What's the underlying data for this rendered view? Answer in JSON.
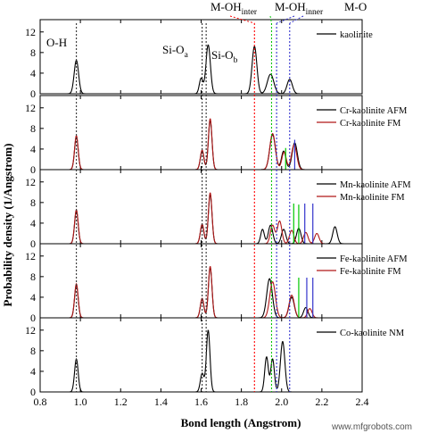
{
  "chart_data": {
    "type": "line",
    "xlabel": "Bond length (Angstrom)",
    "ylabel": "Probability density (1/Angstrom)",
    "xlim": [
      0.8,
      2.4
    ],
    "ylim": [
      0,
      13
    ],
    "x_ticks": [
      "0.8",
      "1.0",
      "1.2",
      "1.4",
      "1.6",
      "1.8",
      "2.0",
      "2.2",
      "2.4"
    ],
    "y_ticks": [
      "0",
      "4",
      "8",
      "12"
    ],
    "annotations": {
      "oh": "O-H",
      "sioa_main": "Si-O",
      "sioa_sub": "a",
      "siob_main": "Si-O",
      "siob_sub": "b",
      "mohinter_main": "M-OH",
      "mohinter_sub": "inter",
      "mohinner_main": "M-OH",
      "mohinner_sub": "inner",
      "mo": "M-O"
    },
    "reference_lines": [
      {
        "x": 0.98,
        "color": "#333333"
      },
      {
        "x": 1.605,
        "color": "#333333"
      },
      {
        "x": 1.625,
        "color": "#333333"
      },
      {
        "x": 1.865,
        "color": "#ff0000"
      },
      {
        "x": 1.95,
        "color": "#00c800"
      },
      {
        "x": 1.975,
        "color": "#3333cc"
      },
      {
        "x": 2.04,
        "color": "#3333cc"
      }
    ],
    "panels": [
      {
        "series": [
          {
            "name": "kaolinite",
            "color": "#000000",
            "peaks": [
              [
                0.98,
                6.5,
                0.011
              ],
              [
                1.6,
                3.0,
                0.009
              ],
              [
                1.635,
                9.5,
                0.011
              ],
              [
                1.865,
                9.2,
                0.012
              ],
              [
                1.945,
                3.8,
                0.016
              ],
              [
                2.04,
                2.8,
                0.013
              ]
            ],
            "spikes": []
          }
        ]
      },
      {
        "series": [
          {
            "name": "Cr-kaolinite AFM",
            "color": "#000000",
            "peaks": [
              [
                0.98,
                6.4,
                0.009
              ],
              [
                1.605,
                3.6,
                0.009
              ],
              [
                1.645,
                9.6,
                0.009
              ],
              [
                1.955,
                6.8,
                0.014
              ],
              [
                2.01,
                3.6,
                0.011
              ],
              [
                2.065,
                5.2,
                0.013
              ]
            ],
            "spikes": []
          },
          {
            "name": "Cr-kaolinite FM",
            "color": "#b01818",
            "peaks": [
              [
                0.98,
                6.6,
                0.009
              ],
              [
                1.605,
                3.8,
                0.009
              ],
              [
                1.645,
                9.9,
                0.009
              ],
              [
                1.955,
                7.0,
                0.014
              ],
              [
                2.012,
                3.4,
                0.011
              ],
              [
                2.062,
                4.8,
                0.013
              ]
            ],
            "spikes": [
              {
                "x": 2.02,
                "h": 4.2,
                "color": "#00c800"
              },
              {
                "x": 2.065,
                "h": 5.8,
                "color": "#3333cc"
              }
            ]
          }
        ]
      },
      {
        "series": [
          {
            "name": "Mn-kaolinite AFM",
            "color": "#000000",
            "peaks": [
              [
                0.98,
                6.4,
                0.009
              ],
              [
                1.605,
                3.6,
                0.009
              ],
              [
                1.645,
                9.6,
                0.009
              ],
              [
                1.905,
                2.8,
                0.009
              ],
              [
                1.945,
                3.6,
                0.011
              ],
              [
                2.01,
                2.8,
                0.011
              ],
              [
                2.085,
                3.0,
                0.011
              ],
              [
                2.265,
                3.3,
                0.011
              ]
            ],
            "spikes": []
          },
          {
            "name": "Mn-kaolinite FM",
            "color": "#b01818",
            "peaks": [
              [
                0.98,
                6.6,
                0.009
              ],
              [
                1.605,
                3.8,
                0.009
              ],
              [
                1.645,
                9.9,
                0.009
              ],
              [
                1.955,
                3.6,
                0.011
              ],
              [
                1.99,
                4.4,
                0.011
              ],
              [
                2.05,
                2.6,
                0.011
              ],
              [
                2.12,
                2.2,
                0.011
              ],
              [
                2.175,
                2.0,
                0.011
              ]
            ],
            "spikes": [
              {
                "x": 2.06,
                "h": 7.8,
                "color": "#00c800"
              },
              {
                "x": 2.085,
                "h": 7.6,
                "color": "#00c800"
              },
              {
                "x": 2.115,
                "h": 7.8,
                "color": "#3333cc"
              },
              {
                "x": 2.155,
                "h": 7.8,
                "color": "#3333cc"
              }
            ]
          }
        ]
      },
      {
        "series": [
          {
            "name": "Fe-kaolinite AFM",
            "color": "#000000",
            "peaks": [
              [
                0.98,
                6.4,
                0.009
              ],
              [
                1.605,
                3.6,
                0.009
              ],
              [
                1.645,
                9.8,
                0.009
              ],
              [
                1.94,
                7.6,
                0.014
              ],
              [
                2.05,
                4.0,
                0.013
              ],
              [
                2.12,
                2.0,
                0.011
              ]
            ],
            "spikes": []
          },
          {
            "name": "Fe-kaolinite FM",
            "color": "#b01818",
            "peaks": [
              [
                0.98,
                6.6,
                0.009
              ],
              [
                1.605,
                3.8,
                0.009
              ],
              [
                1.645,
                10.0,
                0.009
              ],
              [
                1.955,
                7.0,
                0.014
              ],
              [
                2.05,
                4.4,
                0.013
              ],
              [
                2.14,
                1.8,
                0.011
              ]
            ],
            "spikes": [
              {
                "x": 2.085,
                "h": 7.8,
                "color": "#00c800"
              },
              {
                "x": 2.125,
                "h": 7.8,
                "color": "#3333cc"
              },
              {
                "x": 2.155,
                "h": 7.8,
                "color": "#3333cc"
              }
            ]
          }
        ]
      },
      {
        "series": [
          {
            "name": "Co-kaolinite NM",
            "color": "#000000",
            "peaks": [
              [
                0.98,
                6.4,
                0.009
              ],
              [
                1.605,
                3.6,
                0.009
              ],
              [
                1.635,
                12.0,
                0.009
              ],
              [
                1.925,
                6.8,
                0.009
              ],
              [
                1.955,
                6.4,
                0.009
              ],
              [
                2.005,
                9.8,
                0.011
              ]
            ],
            "spikes": []
          }
        ]
      }
    ]
  },
  "watermark": "www.mfgrobots.com"
}
